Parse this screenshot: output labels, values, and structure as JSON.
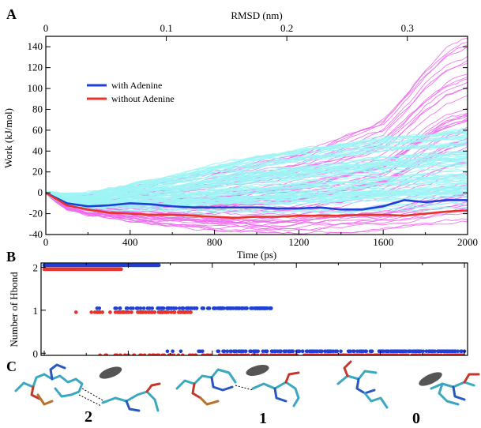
{
  "figure": {
    "panel_letters": [
      "A",
      "B",
      "C"
    ]
  },
  "chart_data": [
    {
      "panel": "A",
      "type": "line",
      "xlabel": "Time (ps)",
      "ylabel": "Work (kJ/mol)",
      "x2label": "RMSD (nm)",
      "xlim": [
        0,
        2000
      ],
      "ylim": [
        -40,
        150
      ],
      "x2lim": [
        0,
        0.35
      ],
      "xticks": [
        "0",
        "400",
        "800",
        "1200",
        "1600",
        "2000"
      ],
      "yticks": [
        "-40",
        "-20",
        "0",
        "20",
        "40",
        "60",
        "80",
        "100",
        "120",
        "140"
      ],
      "x2ticks": [
        "0",
        "0.1",
        "0.2",
        "0.3"
      ],
      "legend_position": "upper-left",
      "grid": false,
      "series": [
        {
          "name": "with Adenine",
          "color": "#1f3fd6",
          "x": [
            0,
            100,
            200,
            300,
            400,
            500,
            600,
            700,
            800,
            900,
            1000,
            1100,
            1200,
            1300,
            1400,
            1500,
            1600,
            1700,
            1800,
            1900,
            2000
          ],
          "values": [
            0,
            -10,
            -13,
            -12,
            -10,
            -11,
            -13,
            -14,
            -14,
            -14,
            -14,
            -15,
            -15,
            -14,
            -16,
            -16,
            -13,
            -7,
            -9,
            -7,
            -7
          ]
        },
        {
          "name": "without Adenine",
          "color": "#e8332b",
          "x": [
            0,
            100,
            200,
            300,
            400,
            500,
            600,
            700,
            800,
            900,
            1000,
            1100,
            1200,
            1300,
            1400,
            1500,
            1600,
            1700,
            1800,
            1900,
            2000
          ],
          "values": [
            0,
            -12,
            -16,
            -19,
            -20,
            -21,
            -21,
            -22,
            -23,
            -24,
            -23,
            -23,
            -22,
            -22,
            -22,
            -21,
            -21,
            -22,
            -20,
            -18,
            -17
          ]
        }
      ],
      "background_series": [
        {
          "color": "#9ef5f5",
          "envelope_x": [
            0,
            100,
            200,
            400,
            600,
            800,
            1000,
            1200,
            1400,
            1600,
            1800,
            2000
          ],
          "upper": [
            0,
            -2,
            0,
            8,
            16,
            26,
            36,
            42,
            48,
            54,
            58,
            62
          ],
          "lower": [
            0,
            -12,
            -15,
            -16,
            -17,
            -17,
            -18,
            -18,
            -19,
            -18,
            -16,
            -15
          ]
        },
        {
          "color": "#ee6bee",
          "envelope_x": [
            0,
            100,
            200,
            400,
            600,
            800,
            1000,
            1200,
            1400,
            1600,
            1700,
            1800,
            1900,
            2000
          ],
          "upper": [
            0,
            -3,
            -2,
            4,
            12,
            20,
            30,
            40,
            55,
            72,
            95,
            120,
            140,
            150
          ],
          "lower": [
            0,
            -16,
            -22,
            -28,
            -32,
            -36,
            -38,
            -38,
            -37,
            -36,
            -34,
            -32,
            -30,
            -28
          ]
        }
      ]
    },
    {
      "panel": "B",
      "type": "scatter",
      "xlabel": "",
      "ylabel": "Number of Hbond",
      "xlim": [
        0,
        2000
      ],
      "ylim": [
        -0.05,
        2.1
      ],
      "yticks": [
        "0",
        "1",
        "2"
      ],
      "grid": false,
      "series": [
        {
          "name": "with Adenine",
          "color": "#1f3fd6",
          "segments": [
            {
              "y": 2,
              "x_start": 0,
              "x_end": 550,
              "density": "dense"
            },
            {
              "y": 1,
              "x_start": 230,
              "x_end": 1080,
              "density": "sparse-to-dense"
            },
            {
              "y": 0,
              "x_start": 550,
              "x_end": 2000,
              "density": "sparse-to-dense"
            }
          ]
        },
        {
          "name": "without Adenine",
          "color": "#e8332b",
          "segments": [
            {
              "y": 2,
              "x_start": 0,
              "x_end": 370,
              "density": "dense"
            },
            {
              "y": 1,
              "x_start": 120,
              "x_end": 700,
              "density": "sparse-to-dense"
            },
            {
              "y": 0,
              "x_start": 120,
              "x_end": 2000,
              "density": "sparse-to-dense"
            }
          ]
        }
      ]
    }
  ],
  "structures": {
    "labels": [
      "2",
      "1",
      "0"
    ]
  }
}
